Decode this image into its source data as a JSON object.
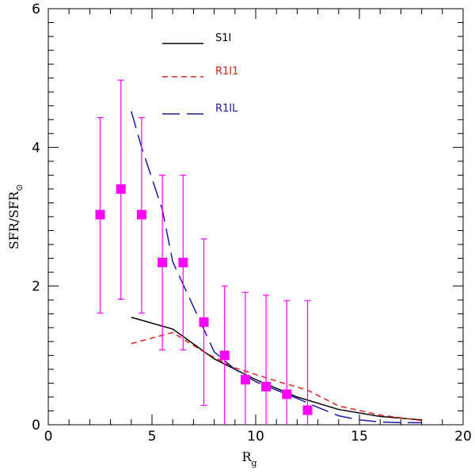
{
  "chart_data": {
    "type": "line",
    "title": "",
    "xlabel": "R_g",
    "ylabel": "SFR/SFR⊙",
    "xlabel_parts": {
      "main": "R",
      "sub": "g"
    },
    "ylabel_parts": {
      "main": "SFR/SFR",
      "sub": "⊙"
    },
    "xlim": [
      0,
      20
    ],
    "ylim": [
      0,
      6
    ],
    "x_ticks": [
      0,
      5,
      10,
      15,
      20
    ],
    "y_ticks": [
      0,
      2,
      4,
      6
    ],
    "x_tick_labels": [
      "0",
      "5",
      "10",
      "15",
      "20"
    ],
    "y_tick_labels": [
      "0",
      "2",
      "4",
      "6"
    ],
    "legend_position": "top-center",
    "series": [
      {
        "name": "S1I",
        "style": "solid",
        "color": "#000000",
        "x": [
          4,
          6,
          8,
          10,
          12,
          14,
          16,
          18
        ],
        "y": [
          1.55,
          1.38,
          0.95,
          0.65,
          0.4,
          0.22,
          0.12,
          0.07
        ]
      },
      {
        "name": "R1I1",
        "style": "short-dash",
        "color": "#e0201b",
        "x": [
          4,
          6,
          7.5,
          9,
          11,
          12.5,
          14,
          16,
          18
        ],
        "y": [
          1.17,
          1.33,
          1.05,
          0.82,
          0.63,
          0.5,
          0.27,
          0.14,
          0.06
        ]
      },
      {
        "name": "R1IL",
        "style": "long-dash",
        "color": "#1a1aa8",
        "x": [
          4,
          4.5,
          5.5,
          6,
          8,
          9,
          10,
          11,
          12,
          13,
          14,
          15,
          16,
          17,
          18
        ],
        "y": [
          4.52,
          4.0,
          3.1,
          2.35,
          1.05,
          0.8,
          0.62,
          0.5,
          0.38,
          0.25,
          0.13,
          0.07,
          0.04,
          0.03,
          0.03
        ]
      }
    ],
    "observations": {
      "name": "data",
      "color": "#ff00ff",
      "x": [
        2.5,
        3.5,
        4.5,
        5.5,
        6.5,
        7.5,
        8.5,
        9.5,
        10.5,
        11.5,
        12.5
      ],
      "y": [
        3.03,
        3.4,
        3.03,
        2.34,
        2.34,
        1.48,
        1.0,
        0.65,
        0.55,
        0.44,
        0.21
      ],
      "y_low": [
        1.61,
        1.81,
        1.61,
        1.08,
        1.08,
        0.28,
        0.0,
        0.0,
        0.0,
        0.0,
        0.0
      ],
      "y_high": [
        4.43,
        4.97,
        4.43,
        3.6,
        3.6,
        2.68,
        2.0,
        1.91,
        1.87,
        1.79,
        1.79
      ]
    }
  }
}
